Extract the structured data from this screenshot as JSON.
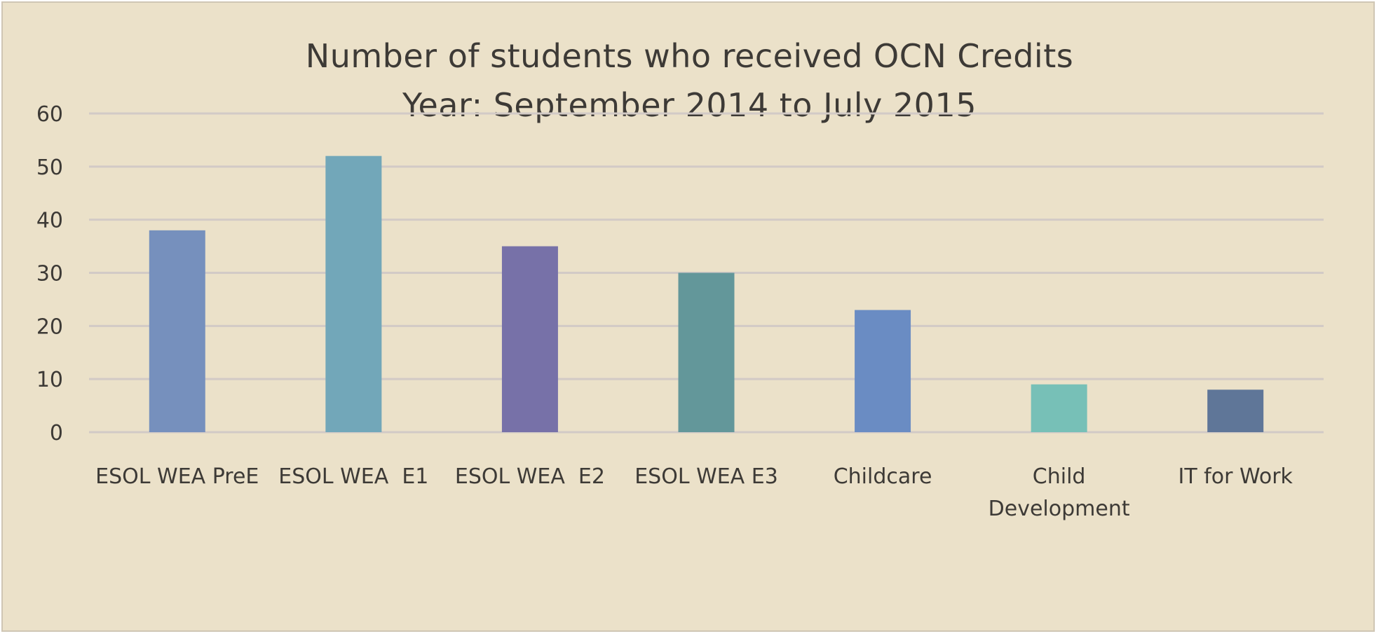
{
  "chart_data": {
    "type": "bar",
    "title": "Number of students who received OCN Credits",
    "subtitle": "Year: September 2014 to July 2015",
    "xlabel": "",
    "ylabel": "",
    "categories": [
      [
        "ESOL WEA PreE"
      ],
      [
        "ESOL WEA  E1"
      ],
      [
        "ESOL WEA  E2"
      ],
      [
        "ESOL WEA E3"
      ],
      [
        "Childcare"
      ],
      [
        "Child",
        "Development"
      ],
      [
        "IT for Work"
      ]
    ],
    "values": [
      38,
      52,
      35,
      30,
      23,
      9,
      8
    ],
    "colors": [
      "#7690bd",
      "#72a7b9",
      "#7771a8",
      "#63979a",
      "#6a8cc3",
      "#77c0b7",
      "#5f7698"
    ],
    "ylim": [
      0,
      60
    ],
    "yticks": [
      "0",
      "10",
      "20",
      "30",
      "40",
      "50",
      "60"
    ],
    "grid": true,
    "gridline_color": "#d2cac6",
    "background_color": "#ebe1c9",
    "legend": "none"
  }
}
